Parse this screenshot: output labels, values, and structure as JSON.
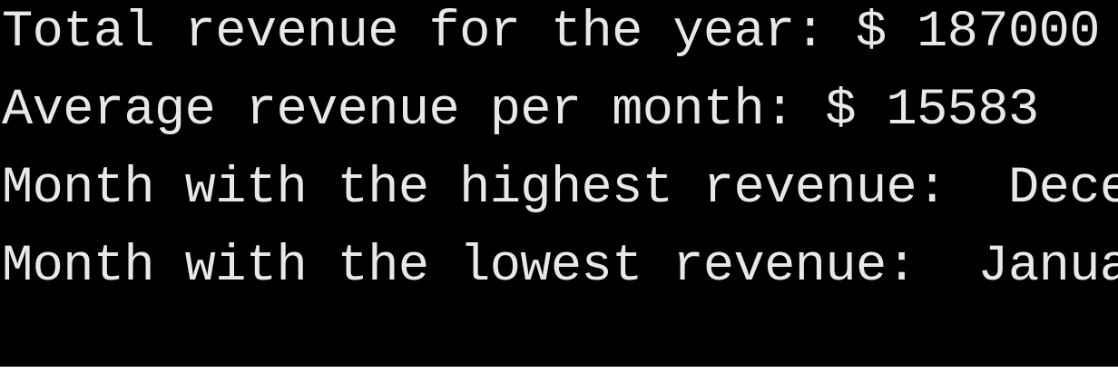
{
  "colors": {
    "background": "#000000",
    "text": "#e8e8e8"
  },
  "console": {
    "lines": [
      "Total revenue for the year: $ 187000",
      "Average revenue per month: $ 15583",
      "Month with the highest revenue:  December",
      "Month with the lowest revenue:  January"
    ]
  }
}
